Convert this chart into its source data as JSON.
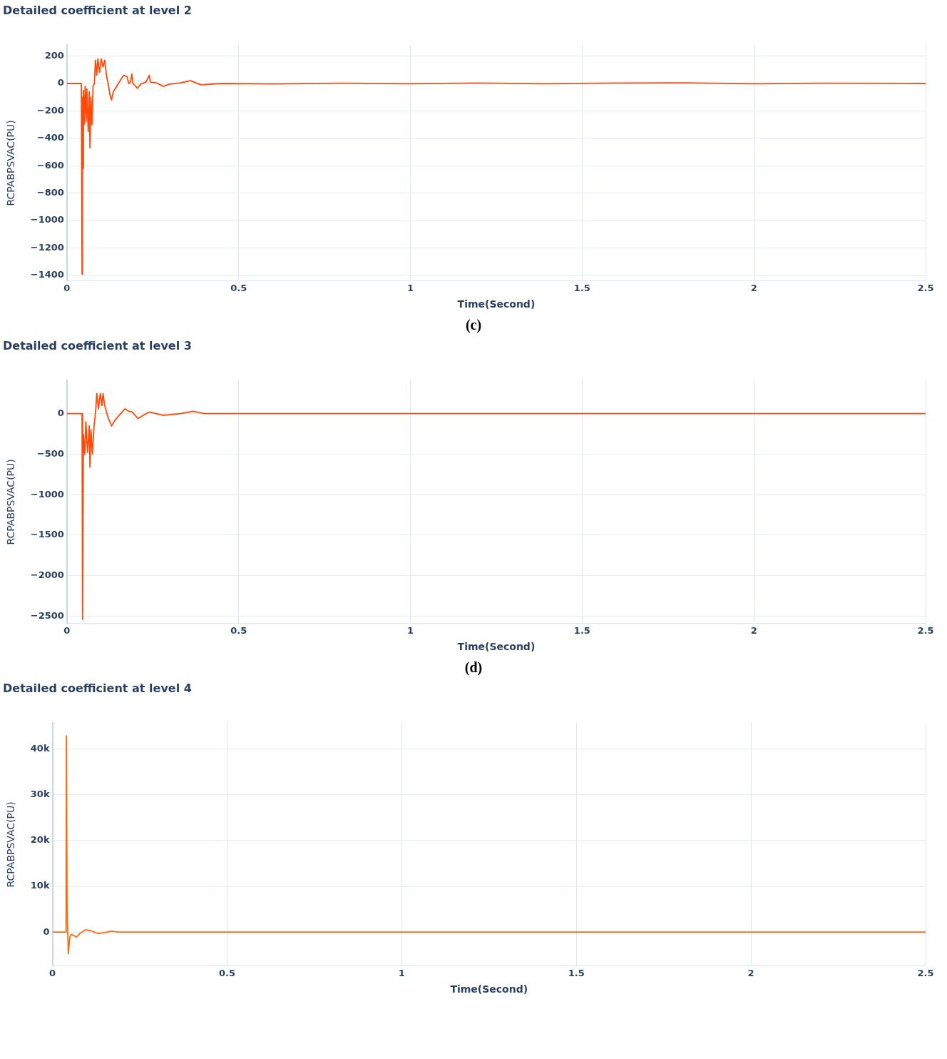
{
  "chart_data": [
    {
      "type": "line",
      "title": "Detailed coefficient at level 2",
      "xlabel": "Time(Second)",
      "ylabel": "RCPABPSVAC(PU)",
      "annotations": [
        "(c)"
      ],
      "xlim": [
        0,
        2.5
      ],
      "xticks": [
        0,
        0.5,
        1,
        1.5,
        2,
        2.5
      ],
      "ylim": [
        -1440,
        280
      ],
      "yticks": [
        200,
        0,
        -200,
        -400,
        -600,
        -800,
        -1000,
        -1200,
        -1400
      ],
      "grid": true,
      "marker": "none",
      "series": [
        {
          "color": "#ff4a0a",
          "x": [
            0,
            0.042,
            0.044,
            0.045,
            0.046,
            0.048,
            0.05,
            0.053,
            0.056,
            0.058,
            0.062,
            0.065,
            0.067,
            0.07,
            0.073,
            0.076,
            0.08,
            0.083,
            0.087,
            0.09,
            0.095,
            0.1,
            0.105,
            0.11,
            0.115,
            0.12,
            0.125,
            0.13,
            0.135,
            0.14,
            0.15,
            0.16,
            0.165,
            0.175,
            0.18,
            0.185,
            0.189,
            0.192,
            0.2,
            0.205,
            0.215,
            0.23,
            0.24,
            0.243,
            0.26,
            0.28,
            0.3,
            0.33,
            0.36,
            0.39,
            0.45,
            0.6,
            0.8,
            1.0,
            1.2,
            1.4,
            1.6,
            1.8,
            2.0,
            2.2,
            2.5
          ],
          "values": [
            0,
            0,
            -1390,
            -100,
            -620,
            -50,
            -300,
            -20,
            -280,
            -40,
            -350,
            -60,
            -470,
            -100,
            -300,
            -20,
            0,
            170,
            60,
            180,
            80,
            180,
            120,
            170,
            60,
            0,
            -80,
            -120,
            -60,
            -40,
            0,
            40,
            60,
            50,
            0,
            10,
            70,
            0,
            -20,
            -35,
            -5,
            10,
            60,
            10,
            5,
            -20,
            -5,
            5,
            20,
            -10,
            0,
            -3,
            2,
            -2,
            3,
            -2,
            3,
            5,
            -2,
            2,
            0
          ]
        }
      ]
    },
    {
      "type": "line",
      "title": "Detailed coefficient at level 3",
      "xlabel": "Time(Second)",
      "ylabel": "RCPABPSVAC(PU)",
      "annotations": [
        "(d)"
      ],
      "xlim": [
        0,
        2.5
      ],
      "xticks": [
        0,
        0.5,
        1,
        1.5,
        2,
        2.5
      ],
      "ylim": [
        -2590,
        410
      ],
      "yticks": [
        0,
        -500,
        -1000,
        -1500,
        -2000,
        -2500
      ],
      "grid": true,
      "marker": "none",
      "series": [
        {
          "color": "#ff4a0a",
          "x": [
            0,
            0.044,
            0.0456,
            0.048,
            0.052,
            0.055,
            0.06,
            0.065,
            0.067,
            0.07,
            0.074,
            0.079,
            0.083,
            0.087,
            0.092,
            0.097,
            0.102,
            0.105,
            0.11,
            0.12,
            0.13,
            0.14,
            0.15,
            0.169,
            0.18,
            0.19,
            0.207,
            0.23,
            0.24,
            0.28,
            0.33,
            0.367,
            0.4,
            0.6,
            0.8,
            1.0,
            1.2,
            1.4,
            1.6,
            1.8,
            2.0,
            2.2,
            2.5
          ],
          "values": [
            0,
            0,
            -2540,
            -250,
            -500,
            -100,
            -480,
            -150,
            -660,
            -200,
            -500,
            -150,
            0,
            250,
            60,
            250,
            100,
            250,
            100,
            -50,
            -150,
            -80,
            -30,
            60,
            30,
            20,
            -60,
            0,
            20,
            -20,
            0,
            30,
            0,
            0,
            0,
            0,
            0,
            0,
            0,
            0,
            0,
            0,
            0
          ]
        }
      ]
    },
    {
      "type": "line",
      "title": "Detailed coefficient at level 4",
      "xlabel": "Time(Second)",
      "ylabel": "RCPABPSVAC(PU)",
      "xlim": [
        0,
        2.5
      ],
      "xticks": [
        0,
        0.5,
        1,
        1.5,
        2,
        2.5
      ],
      "ylim": [
        -7400,
        45700
      ],
      "yticks": [
        0,
        {
          "value": 10000,
          "label": "10k"
        },
        {
          "value": 20000,
          "label": "20k"
        },
        {
          "value": 30000,
          "label": "30k"
        },
        {
          "value": 40000,
          "label": "40k"
        }
      ],
      "grid": true,
      "marker": "none",
      "series": [
        {
          "color": "#ff6a0a",
          "x": [
            0,
            0.039,
            0.04,
            0.042,
            0.0455,
            0.05,
            0.054,
            0.06,
            0.069,
            0.08,
            0.095,
            0.11,
            0.13,
            0.15,
            0.168,
            0.19,
            0.22,
            0.5,
            1.0,
            1.5,
            2.0,
            2.5
          ],
          "values": [
            0,
            0,
            42900,
            5000,
            -4700,
            -1000,
            -500,
            -700,
            -1100,
            -200,
            500,
            300,
            -300,
            -100,
            200,
            0,
            0,
            0,
            0,
            0,
            0,
            0
          ]
        }
      ]
    }
  ]
}
